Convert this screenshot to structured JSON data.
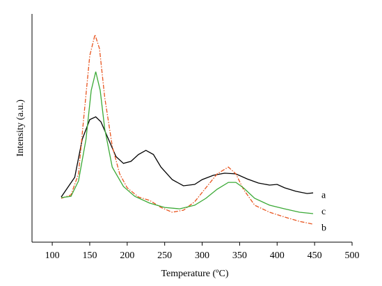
{
  "chart_data": {
    "type": "line",
    "x_label": "Temperature (ºC)",
    "y_label": "Intensity (a.u.)",
    "xlim": [
      73,
      500
    ],
    "xticks": [
      100,
      150,
      200,
      250,
      300,
      350,
      400,
      450,
      500
    ],
    "ylim": [
      0,
      100
    ],
    "series": [
      {
        "name": "a",
        "color": "#000000",
        "dash": "solid",
        "x": [
          112,
          130,
          140,
          150,
          158,
          165,
          175,
          185,
          195,
          205,
          215,
          225,
          235,
          245,
          260,
          275,
          290,
          300,
          315,
          330,
          345,
          360,
          375,
          390,
          400,
          410,
          425,
          440,
          448
        ],
        "values": [
          19.8,
          28.4,
          45.1,
          53.7,
          54.9,
          52.7,
          45.1,
          37.5,
          34.5,
          35.4,
          38.4,
          40.2,
          38.4,
          32.9,
          27.4,
          24.7,
          25.3,
          27.4,
          29.3,
          30.2,
          29.9,
          27.7,
          25.9,
          25.0,
          25.3,
          23.8,
          22.3,
          21.3,
          21.6
        ]
      },
      {
        "name": "b",
        "color": "#e8541e",
        "dash": "dashdot",
        "x": [
          112,
          125,
          135,
          142,
          150,
          157,
          163,
          170,
          180,
          190,
          200,
          215,
          230,
          245,
          260,
          275,
          290,
          305,
          320,
          335,
          345,
          355,
          370,
          390,
          410,
          430,
          448
        ],
        "values": [
          19.2,
          20.7,
          29.9,
          54.3,
          81.7,
          90.9,
          84.8,
          63.4,
          42.1,
          29.9,
          23.8,
          19.8,
          18.3,
          15.2,
          13.1,
          14.0,
          17.7,
          23.8,
          29.9,
          32.9,
          29.9,
          23.2,
          16.2,
          13.1,
          11.0,
          9.1,
          7.9
        ]
      },
      {
        "name": "c",
        "color": "#3aa935",
        "dash": "solid",
        "x": [
          112,
          125,
          135,
          145,
          152,
          158,
          164,
          170,
          180,
          195,
          210,
          230,
          250,
          270,
          290,
          305,
          320,
          335,
          345,
          355,
          370,
          390,
          410,
          430,
          448
        ],
        "values": [
          19.5,
          20.1,
          26.8,
          45.1,
          66.5,
          74.7,
          66.5,
          49.7,
          32.9,
          24.4,
          20.1,
          17.1,
          15.2,
          14.6,
          16.2,
          19.2,
          23.2,
          26.2,
          26.2,
          23.8,
          19.2,
          16.2,
          14.6,
          13.1,
          12.5
        ]
      }
    ]
  }
}
